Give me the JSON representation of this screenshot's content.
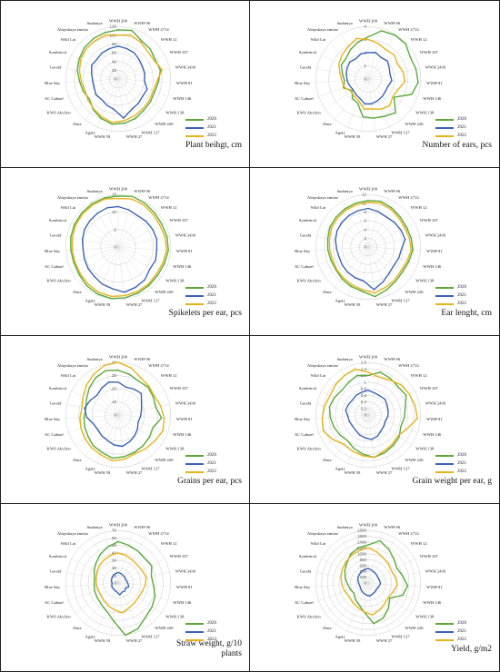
{
  "colors": {
    "s2020": "#5aaa3c",
    "s2021": "#3b64b4",
    "s2022": "#e8b21c",
    "grid": "#c9c9c9",
    "axis": "#d9d9d9"
  },
  "legend": [
    "2020",
    "2021",
    "2022"
  ],
  "varieties": [
    "WWH 200",
    "WWH 96",
    "WWH 2714",
    "WWH 12",
    "WWH 107",
    "WWH 2430",
    "WWH 81",
    "WWH 146",
    "WWH 138",
    "WWH 220",
    "WWH 127",
    "WWH 27",
    "WWH 59",
    "Agata",
    "Zlata",
    "KWS Akvilon",
    "AC Gabuel",
    "Blue Sky",
    "Gerald",
    "Symbiircit",
    "Wild Cat",
    "Altayskaya zmitsa",
    "Sudaniya"
  ],
  "chart_data": [
    {
      "type": "radar",
      "title": "Plant beihgt, cm",
      "ticks": [
        "0",
        "20",
        "40",
        "60",
        "80",
        "100",
        "120"
      ],
      "rmax": 120,
      "series": [
        {
          "name": "2020",
          "values": [
            112,
            115,
            102,
            100,
            95,
            98,
            92,
            88,
            90,
            92,
            98,
            102,
            104,
            98,
            90,
            80,
            84,
            88,
            95,
            100,
            105,
            108,
            110
          ]
        },
        {
          "name": "2021",
          "values": [
            75,
            72,
            70,
            65,
            62,
            62,
            60,
            70,
            68,
            72,
            76,
            90,
            70,
            65,
            60,
            62,
            58,
            58,
            62,
            68,
            66,
            70,
            72
          ]
        },
        {
          "name": "2022",
          "values": [
            100,
            104,
            98,
            92,
            92,
            102,
            88,
            84,
            86,
            88,
            92,
            96,
            100,
            94,
            88,
            84,
            80,
            84,
            90,
            96,
            100,
            102,
            104
          ]
        }
      ]
    },
    {
      "type": "radar",
      "title": "Number of ears, pcs",
      "ticks": [
        "0",
        "1",
        "2",
        "3",
        "4"
      ],
      "rmax": 4,
      "series": [
        {
          "name": "2020",
          "values": [
            3.2,
            3.8,
            3.9,
            3.9,
            3.6,
            3.7,
            3.8,
            3.5,
            2.4,
            3.3,
            3.1,
            3.0,
            2.9,
            2.0,
            1.9,
            1.5,
            2.0,
            1.8,
            2.0,
            2.3,
            2.3,
            2.6,
            2.9
          ]
        },
        {
          "name": "2021",
          "values": [
            2.0,
            2.1,
            1.9,
            2.0,
            1.8,
            1.7,
            1.8,
            1.6,
            1.6,
            1.7,
            1.8,
            1.9,
            1.9,
            1.6,
            1.5,
            1.4,
            1.5,
            1.6,
            1.7,
            1.8,
            1.9,
            1.8,
            2.0
          ]
        },
        {
          "name": "2022",
          "values": [
            3.0,
            2.8,
            2.6,
            2.7,
            2.5,
            2.7,
            2.8,
            2.4,
            2.3,
            2.6,
            2.5,
            2.3,
            2.3,
            1.8,
            1.7,
            1.6,
            1.9,
            2.0,
            2.2,
            2.5,
            2.7,
            2.9,
            3.2
          ]
        }
      ]
    },
    {
      "type": "radar",
      "title": "Spikelets per ear, pcs",
      "ticks": [
        "0",
        "5",
        "10",
        "15"
      ],
      "rmax": 15,
      "series": [
        {
          "name": "2020",
          "values": [
            14.5,
            15.0,
            14.6,
            14.2,
            14.0,
            14.2,
            14.3,
            14.0,
            13.8,
            14.0,
            14.3,
            14.6,
            14.8,
            14.6,
            14.2,
            13.6,
            13.4,
            13.5,
            13.8,
            14.0,
            14.2,
            14.4,
            14.5
          ]
        },
        {
          "name": "2021",
          "values": [
            11.5,
            11.0,
            10.5,
            10.8,
            11.0,
            11.2,
            11.0,
            11.3,
            11.0,
            12.0,
            12.5,
            13.0,
            12.0,
            11.5,
            10.8,
            10.5,
            10.2,
            10.0,
            10.4,
            10.8,
            11.0,
            11.3,
            11.6
          ]
        },
        {
          "name": "2022",
          "values": [
            13.8,
            14.2,
            14.0,
            13.6,
            13.4,
            13.6,
            13.8,
            13.5,
            13.3,
            13.6,
            13.8,
            14.0,
            14.2,
            14.0,
            13.6,
            13.2,
            13.0,
            13.1,
            13.3,
            13.6,
            13.8,
            14.0,
            14.2
          ]
        }
      ]
    },
    {
      "type": "radar",
      "title": "Ear lenght, cm",
      "ticks": [
        "0",
        "2",
        "4",
        "6",
        "8",
        "10",
        "12"
      ],
      "rmax": 12,
      "series": [
        {
          "name": "2020",
          "values": [
            10.6,
            10.8,
            10.4,
            10.0,
            9.8,
            10.0,
            10.2,
            9.8,
            9.6,
            10.0,
            10.6,
            11.4,
            10.2,
            9.8,
            9.4,
            9.0,
            9.0,
            9.2,
            9.4,
            9.8,
            10.0,
            10.2,
            10.4
          ]
        },
        {
          "name": "2021",
          "values": [
            8.8,
            8.4,
            8.0,
            8.2,
            8.4,
            8.6,
            7.6,
            7.4,
            7.2,
            7.6,
            8.6,
            9.8,
            7.8,
            7.6,
            7.4,
            7.2,
            7.0,
            7.2,
            7.6,
            8.0,
            8.2,
            8.4,
            8.6
          ]
        },
        {
          "name": "2022",
          "values": [
            10.2,
            10.4,
            10.0,
            9.6,
            9.4,
            9.6,
            9.8,
            9.4,
            9.2,
            9.6,
            10.0,
            10.6,
            9.8,
            9.4,
            9.0,
            8.8,
            8.6,
            8.8,
            9.0,
            9.4,
            9.6,
            9.8,
            10.0
          ]
        }
      ]
    },
    {
      "type": "radar",
      "title": "Grains per ear, pcs",
      "ticks": [
        "0",
        "10",
        "20",
        "30",
        "40"
      ],
      "rmax": 40,
      "series": [
        {
          "name": "2020",
          "values": [
            34,
            32,
            30,
            31,
            30,
            29,
            33,
            28,
            29,
            30,
            31,
            32,
            33,
            31,
            30,
            28,
            27,
            26,
            25,
            27,
            30,
            33,
            35
          ]
        },
        {
          "name": "2021",
          "values": [
            25,
            22,
            23,
            24,
            20,
            18,
            17,
            16,
            18,
            20,
            22,
            24,
            23,
            21,
            20,
            19,
            20,
            24,
            26,
            24,
            22,
            24,
            26
          ]
        },
        {
          "name": "2022",
          "values": [
            40,
            37,
            33,
            32,
            31,
            33,
            35,
            36,
            34,
            33,
            32,
            34,
            35,
            33,
            32,
            31,
            30,
            29,
            28,
            30,
            33,
            36,
            39
          ]
        }
      ]
    },
    {
      "type": "radar",
      "title": "Grain weight per ear, g",
      "ticks": [
        "0",
        "0.2",
        "0.4",
        "0.6",
        "0.8",
        "1",
        "1.2",
        "1.4",
        "1.6"
      ],
      "rmax": 1.6,
      "series": [
        {
          "name": "2020",
          "values": [
            1.2,
            1.35,
            1.3,
            1.25,
            1.3,
            1.15,
            1.1,
            1.05,
            1.15,
            1.2,
            1.25,
            1.3,
            1.2,
            1.1,
            1.0,
            1.05,
            1.1,
            1.15,
            1.2,
            1.15,
            1.1,
            1.15,
            1.25
          ]
        },
        {
          "name": "2021",
          "values": [
            0.75,
            0.7,
            0.68,
            0.7,
            0.65,
            0.62,
            0.6,
            0.55,
            0.58,
            0.62,
            0.7,
            0.75,
            0.7,
            0.66,
            0.6,
            0.58,
            0.6,
            0.62,
            0.7,
            0.68,
            0.66,
            0.7,
            0.72
          ]
        },
        {
          "name": "2022",
          "values": [
            1.3,
            1.2,
            1.25,
            1.35,
            1.4,
            1.45,
            1.5,
            1.25,
            1.1,
            1.15,
            1.2,
            1.3,
            1.25,
            1.2,
            1.15,
            1.3,
            1.45,
            1.4,
            1.35,
            1.3,
            1.35,
            1.4,
            1.45
          ]
        }
      ]
    },
    {
      "type": "radar",
      "title": "Straw weight, g/10 plants",
      "ticks": [
        "0",
        "10",
        "20",
        "30",
        "40",
        "50",
        "60",
        "70"
      ],
      "rmax": 70,
      "series": [
        {
          "name": "2020",
          "values": [
            55,
            52,
            50,
            48,
            50,
            45,
            47,
            52,
            55,
            58,
            66,
            70,
            50,
            40,
            36,
            34,
            33,
            32,
            32,
            36,
            40,
            45,
            50
          ]
        },
        {
          "name": "2021",
          "values": [
            14,
            13,
            12,
            12,
            11,
            12,
            13,
            15,
            12,
            14,
            13,
            16,
            12,
            11,
            10,
            10,
            9,
            8,
            9,
            10,
            11,
            12,
            13
          ]
        },
        {
          "name": "2022",
          "values": [
            40,
            38,
            36,
            35,
            36,
            38,
            36,
            34,
            33,
            34,
            36,
            40,
            36,
            33,
            30,
            28,
            28,
            29,
            30,
            32,
            34,
            36,
            38
          ]
        }
      ]
    },
    {
      "type": "radar",
      "title": "Yield, g/m2",
      "ticks": [
        "0",
        "200",
        "400",
        "600",
        "800",
        "1000",
        "1200",
        "1400",
        "1600",
        "1800"
      ],
      "rmax": 1800,
      "series": [
        {
          "name": "2020",
          "values": [
            1300,
            1500,
            1350,
            1200,
            1100,
            1200,
            1350,
            1250,
            900,
            1100,
            1300,
            1400,
            1000,
            800,
            700,
            600,
            650,
            700,
            800,
            900,
            1000,
            1150,
            1250
          ]
        },
        {
          "name": "2021",
          "values": [
            500,
            450,
            420,
            400,
            380,
            400,
            420,
            380,
            350,
            380,
            400,
            450,
            420,
            380,
            350,
            320,
            300,
            320,
            350,
            400,
            420,
            450,
            480
          ]
        },
        {
          "name": "2022",
          "values": [
            1200,
            1100,
            1000,
            950,
            900,
            950,
            1000,
            900,
            850,
            900,
            1000,
            1100,
            1000,
            900,
            850,
            800,
            850,
            900,
            950,
            1000,
            1050,
            1100,
            1150
          ]
        }
      ]
    }
  ]
}
